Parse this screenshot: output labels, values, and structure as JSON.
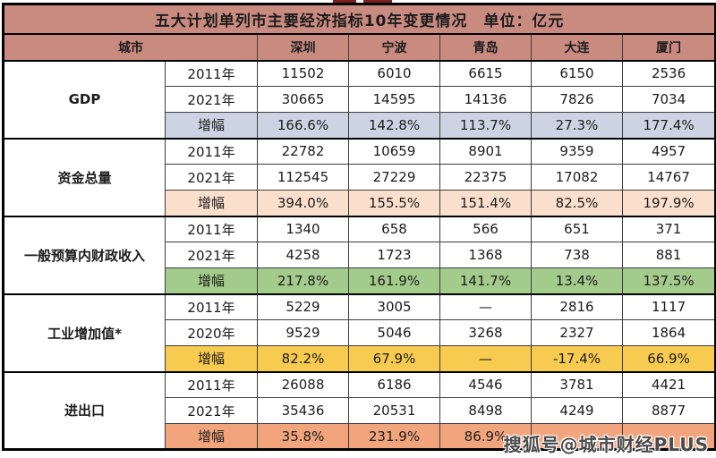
{
  "colors": {
    "banner_bg": "#c98a80",
    "growth_gdp_bg": "#ccd4e3",
    "growth_funds_bg": "#f9dfcc",
    "growth_fiscal_bg": "#a3cb8c",
    "growth_industry_bg": "#f7ca50",
    "growth_trade_bg": "#f2a57d",
    "border_thick": "#000000",
    "border_thin": "#3d3d3d"
  },
  "watermark": {
    "text": "搜狐号@城市财经PLUS"
  },
  "chart_data": {
    "type": "table",
    "title": "五大计划单列市主要经济指标10年变更情况　单位：亿元",
    "corner_label": "城市",
    "columns": [
      "深圳",
      "宁波",
      "青岛",
      "大连",
      "厦门"
    ],
    "sections": [
      {
        "label": "GDP",
        "growth_bg": "#ccd4e3",
        "rows": [
          {
            "label": "2011年",
            "type": "data",
            "values": [
              "11502",
              "6010",
              "6615",
              "6150",
              "2536"
            ]
          },
          {
            "label": "2021年",
            "type": "data",
            "values": [
              "30665",
              "14595",
              "14136",
              "7826",
              "7034"
            ]
          },
          {
            "label": "增幅",
            "type": "growth",
            "values": [
              "166.6%",
              "142.8%",
              "113.7%",
              "27.3%",
              "177.4%"
            ]
          }
        ]
      },
      {
        "label": "资金总量",
        "growth_bg": "#f9dfcc",
        "rows": [
          {
            "label": "2011年",
            "type": "data",
            "values": [
              "22782",
              "10659",
              "8901",
              "9359",
              "4957"
            ]
          },
          {
            "label": "2021年",
            "type": "data",
            "values": [
              "112545",
              "27229",
              "22375",
              "17082",
              "14767"
            ]
          },
          {
            "label": "增幅",
            "type": "growth",
            "values": [
              "394.0%",
              "155.5%",
              "151.4%",
              "82.5%",
              "197.9%"
            ]
          }
        ]
      },
      {
        "label": "一般预算内财政收入",
        "growth_bg": "#a3cb8c",
        "rows": [
          {
            "label": "2011年",
            "type": "data",
            "values": [
              "1340",
              "658",
              "566",
              "651",
              "371"
            ]
          },
          {
            "label": "2021年",
            "type": "data",
            "values": [
              "4258",
              "1723",
              "1368",
              "738",
              "881"
            ]
          },
          {
            "label": "增幅",
            "type": "growth",
            "values": [
              "217.8%",
              "161.9%",
              "141.7%",
              "13.4%",
              "137.5%"
            ]
          }
        ]
      },
      {
        "label": "工业增加值*",
        "growth_bg": "#f7ca50",
        "rows": [
          {
            "label": "2011年",
            "type": "data",
            "values": [
              "5229",
              "3005",
              "—",
              "2816",
              "1117"
            ]
          },
          {
            "label": "2020年",
            "type": "data",
            "values": [
              "9529",
              "5046",
              "3268",
              "2327",
              "1864"
            ]
          },
          {
            "label": "增幅",
            "type": "growth",
            "values": [
              "82.2%",
              "67.9%",
              "—",
              "-17.4%",
              "66.9%"
            ]
          }
        ]
      },
      {
        "label": "进出口",
        "growth_bg": "#f2a57d",
        "rows": [
          {
            "label": "2011年",
            "type": "data",
            "values": [
              "26088",
              "6186",
              "4546",
              "3781",
              "4421"
            ]
          },
          {
            "label": "2021年",
            "type": "data",
            "values": [
              "35436",
              "20531",
              "8498",
              "4249",
              "8877"
            ]
          },
          {
            "label": "增幅",
            "type": "growth",
            "values": [
              "35.8%",
              "231.9%",
              "86.9%",
              "",
              ""
            ]
          }
        ]
      }
    ]
  }
}
